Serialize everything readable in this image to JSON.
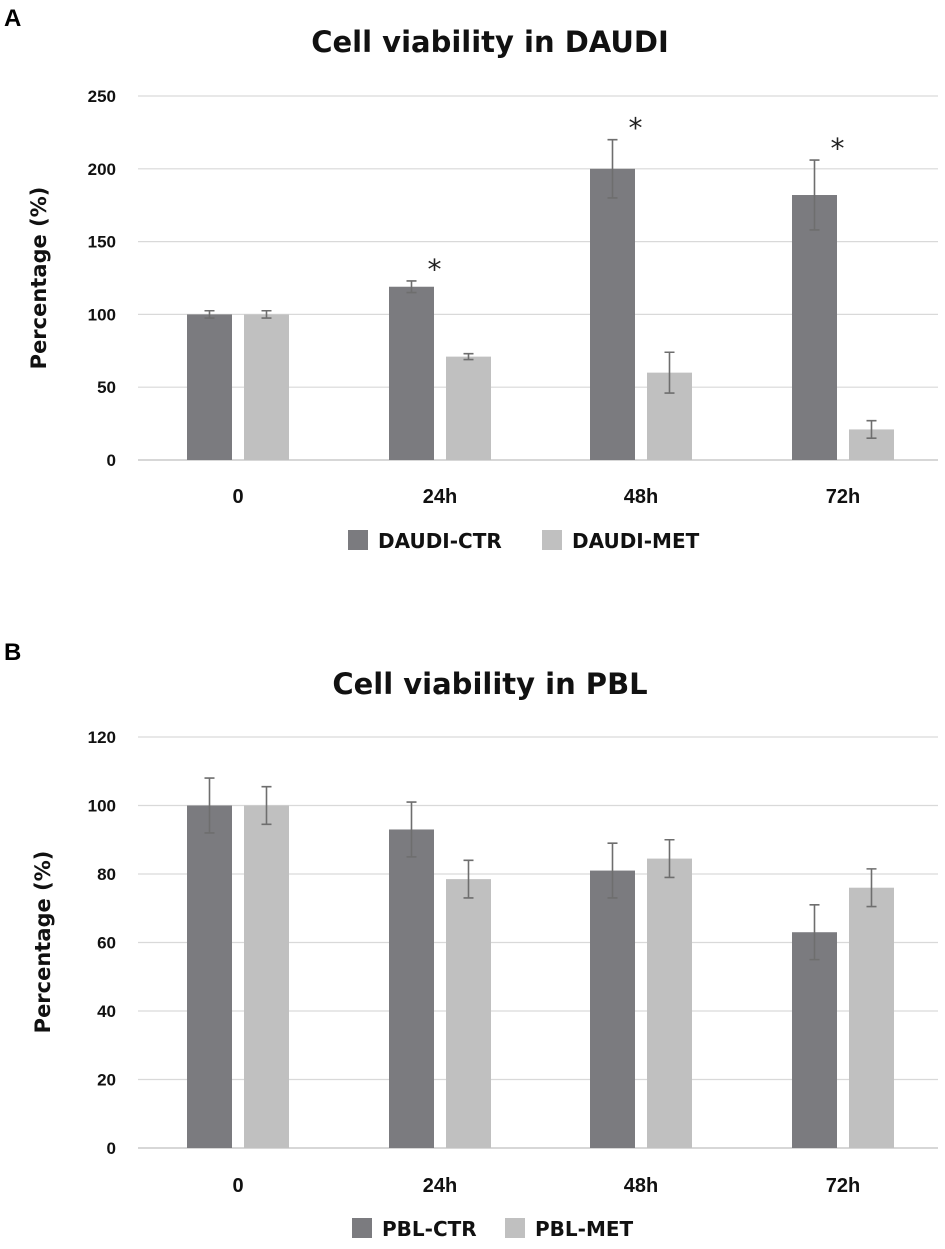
{
  "chart_data": [
    {
      "panel": "A",
      "type": "bar",
      "title": "Cell viability in DAUDI",
      "xlabel": "",
      "ylabel": "Percentage (%)",
      "ylim": [
        0,
        250
      ],
      "yticks": [
        0,
        50,
        100,
        150,
        200,
        250
      ],
      "categories": [
        "0",
        "24h",
        "48h",
        "72h"
      ],
      "series": [
        {
          "name": "DAUDI-CTR",
          "color": "#7b7b7f",
          "values": [
            100,
            119,
            200,
            182
          ],
          "errors": [
            2.5,
            4,
            20,
            24
          ]
        },
        {
          "name": "DAUDI-MET",
          "color": "#c0c0c0",
          "values": [
            100,
            71,
            60,
            21
          ],
          "errors": [
            2.5,
            2,
            14,
            6
          ]
        }
      ],
      "annotations": [
        {
          "category": "24h",
          "text": "*"
        },
        {
          "category": "48h",
          "text": "*"
        },
        {
          "category": "72h",
          "text": "*"
        }
      ],
      "grid": true,
      "legend": "bottom"
    },
    {
      "panel": "B",
      "type": "bar",
      "title": "Cell viability in PBL",
      "xlabel": "",
      "ylabel": "Percentage (%)",
      "ylim": [
        0,
        120
      ],
      "yticks": [
        0,
        20,
        40,
        60,
        80,
        100,
        120
      ],
      "categories": [
        "0",
        "24h",
        "48h",
        "72h"
      ],
      "series": [
        {
          "name": "PBL-CTR",
          "color": "#7b7b7f",
          "values": [
            100,
            93,
            81,
            63
          ],
          "errors": [
            8,
            8,
            8,
            8
          ]
        },
        {
          "name": "PBL-MET",
          "color": "#c0c0c0",
          "values": [
            100,
            78.5,
            84.5,
            76
          ],
          "errors": [
            5.5,
            5.5,
            5.5,
            5.5
          ]
        }
      ],
      "annotations": [],
      "grid": true,
      "legend": "bottom"
    }
  ]
}
